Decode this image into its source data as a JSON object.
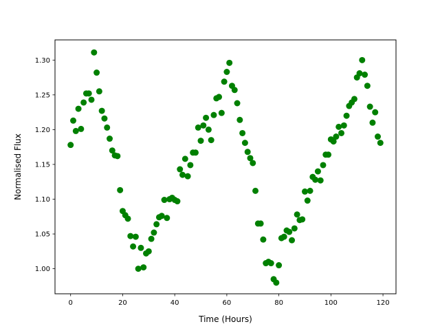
{
  "chart_data": {
    "type": "scatter",
    "title": "",
    "xlabel": "Time (Hours)",
    "ylabel": "Normalised Flux",
    "xlim": [
      -6,
      125
    ],
    "ylim": [
      0.964,
      1.329
    ],
    "xticks": [
      0,
      20,
      40,
      60,
      80,
      100,
      120
    ],
    "xtick_labels": [
      "0",
      "20",
      "40",
      "60",
      "80",
      "100",
      "120"
    ],
    "yticks": [
      1.0,
      1.05,
      1.1,
      1.15,
      1.2,
      1.25,
      1.3
    ],
    "ytick_labels": [
      "1.00",
      "1.05",
      "1.10",
      "1.15",
      "1.20",
      "1.25",
      "1.30"
    ],
    "grid": false,
    "marker_color": "#008000",
    "x": [
      0,
      1,
      2,
      3,
      4,
      5,
      6,
      7,
      8,
      9,
      10,
      11,
      12,
      13,
      14,
      15,
      16,
      17,
      18,
      19,
      20,
      21,
      22,
      23,
      24,
      25,
      26,
      27,
      28,
      29,
      30,
      31,
      32,
      33,
      34,
      35,
      36,
      37,
      38,
      39,
      40,
      41,
      42,
      43,
      44,
      45,
      46,
      47,
      48,
      49,
      50,
      51,
      52,
      53,
      54,
      55,
      56,
      57,
      58,
      59,
      60,
      61,
      62,
      63,
      64,
      65,
      66,
      67,
      68,
      69,
      70,
      71,
      72,
      73,
      74,
      75,
      76,
      77,
      78,
      79,
      80,
      81,
      82,
      83,
      84,
      85,
      86,
      87,
      88,
      89,
      90,
      91,
      92,
      93,
      94,
      95,
      96,
      97,
      98,
      99,
      100,
      101,
      102,
      103,
      104,
      105,
      106,
      107,
      108,
      109,
      110,
      111,
      112,
      113,
      114,
      115,
      116,
      117,
      118,
      119
    ],
    "y": [
      1.178,
      1.213,
      1.198,
      1.23,
      1.201,
      1.239,
      1.252,
      1.252,
      1.243,
      1.311,
      1.282,
      1.255,
      1.227,
      1.216,
      1.203,
      1.187,
      1.17,
      1.163,
      1.162,
      1.113,
      1.083,
      1.077,
      1.072,
      1.047,
      1.032,
      1.046,
      1.0,
      1.03,
      1.002,
      1.022,
      1.025,
      1.043,
      1.052,
      1.064,
      1.074,
      1.076,
      1.099,
      1.073,
      1.1,
      1.102,
      1.099,
      1.097,
      1.143,
      1.135,
      1.158,
      1.133,
      1.149,
      1.167,
      1.167,
      1.203,
      1.184,
      1.206,
      1.217,
      1.2,
      1.185,
      1.221,
      1.245,
      1.247,
      1.224,
      1.269,
      1.283,
      1.296,
      1.263,
      1.257,
      1.238,
      1.214,
      1.195,
      1.181,
      1.168,
      1.159,
      1.152,
      1.112,
      1.065,
      1.065,
      1.042,
      1.008,
      1.01,
      1.008,
      0.985,
      0.98,
      1.005,
      1.044,
      1.046,
      1.055,
      1.053,
      1.041,
      1.058,
      1.078,
      1.07,
      1.071,
      1.111,
      1.098,
      1.112,
      1.132,
      1.128,
      1.14,
      1.127,
      1.149,
      1.164,
      1.164,
      1.186,
      1.183,
      1.19,
      1.204,
      1.195,
      1.206,
      1.22,
      1.234,
      1.239,
      1.244,
      1.275,
      1.281,
      1.3,
      1.279,
      1.263,
      1.233,
      1.21,
      1.225,
      1.19,
      1.181
    ]
  }
}
